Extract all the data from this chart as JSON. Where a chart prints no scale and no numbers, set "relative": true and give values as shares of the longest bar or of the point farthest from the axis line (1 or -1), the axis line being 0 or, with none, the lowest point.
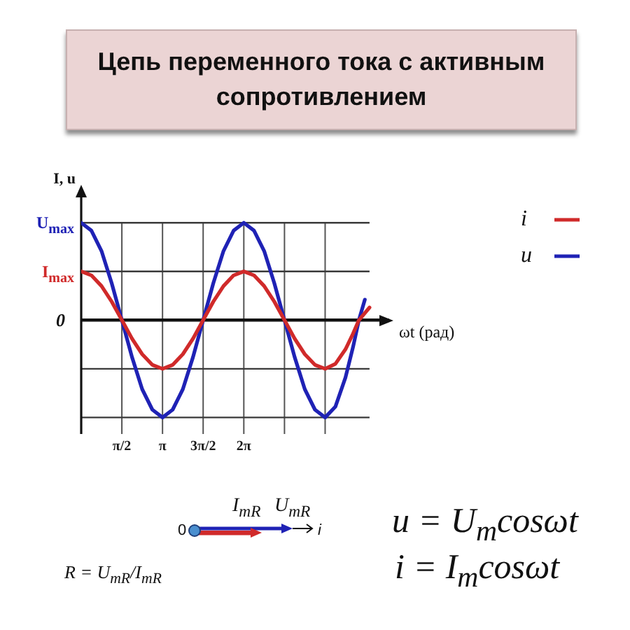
{
  "chart_data": {
    "type": "line",
    "title": "Цепь переменного тока с активным сопротивлением",
    "xlabel": "ωt (рад)",
    "ylabel": "I, u",
    "relative": true,
    "xlim": [
      0,
      11.9
    ],
    "xticks": [
      {
        "value": 1.571,
        "label": "π/2"
      },
      {
        "value": 3.142,
        "label": "π"
      },
      {
        "value": 4.712,
        "label": "3π/2"
      },
      {
        "value": 6.283,
        "label": "2π"
      },
      {
        "value": 7.854,
        "label": null
      },
      {
        "value": 9.425,
        "label": null
      }
    ],
    "grid": "x",
    "legend": "top right",
    "marker": "none",
    "line_style": "solid",
    "series": [
      {
        "name": "i",
        "color": "#d02a2a",
        "x": [
          0,
          0.393,
          0.785,
          1.178,
          1.571,
          1.963,
          2.356,
          2.749,
          3.142,
          3.534,
          3.927,
          4.32,
          4.712,
          5.105,
          5.498,
          5.89,
          6.283,
          6.676,
          7.069,
          7.461,
          7.854,
          8.247,
          8.639,
          9.032,
          9.425,
          9.82,
          10.21,
          10.5,
          10.73,
          11.14
        ],
        "values": [
          0.5,
          0.46,
          0.35,
          0.19,
          0,
          -0.19,
          -0.35,
          -0.46,
          -0.5,
          -0.46,
          -0.35,
          -0.19,
          0,
          0.19,
          0.35,
          0.46,
          0.5,
          0.46,
          0.35,
          0.19,
          0,
          -0.19,
          -0.35,
          -0.46,
          -0.5,
          -0.45,
          -0.3,
          -0.14,
          0,
          0.13
        ]
      },
      {
        "name": "u",
        "color": "#1f22b5",
        "x": [
          0,
          0.393,
          0.785,
          1.178,
          1.571,
          1.963,
          2.356,
          2.749,
          3.142,
          3.534,
          3.927,
          4.32,
          4.712,
          5.105,
          5.498,
          5.89,
          6.283,
          6.676,
          7.069,
          7.461,
          7.854,
          8.247,
          8.639,
          9.032,
          9.425,
          9.82,
          10.21,
          10.5,
          10.73,
          10.96
        ],
        "values": [
          1,
          0.92,
          0.71,
          0.38,
          0,
          -0.38,
          -0.71,
          -0.92,
          -1,
          -0.92,
          -0.71,
          -0.38,
          0,
          0.38,
          0.71,
          0.92,
          1,
          0.92,
          0.71,
          0.38,
          0,
          -0.38,
          -0.71,
          -0.92,
          -1,
          -0.89,
          -0.59,
          -0.28,
          0,
          0.21
        ]
      }
    ],
    "ref_lines": [
      {
        "axis": "y",
        "value": 1,
        "color": "#3a3a3a"
      },
      {
        "axis": "y",
        "value": 0.5,
        "color": "#3a3a3a"
      },
      {
        "axis": "y",
        "value": -0.5,
        "color": "#3a3a3a"
      },
      {
        "axis": "y",
        "value": -1,
        "color": "#3a3a3a"
      }
    ],
    "annotations": [
      {
        "text": "U$_{max}$",
        "x": 0,
        "y": 1
      },
      {
        "text": "I$_{max}$",
        "x": 0,
        "y": 0.5
      },
      "0",
      "0",
      "I$_{mR}$",
      "U$_{mR}$",
      "i",
      "R = U$_{mR}$/I$_{mR}$",
      "u = U$_{m}$cosωt",
      "i = I$_{m}$cosωt"
    ]
  }
}
